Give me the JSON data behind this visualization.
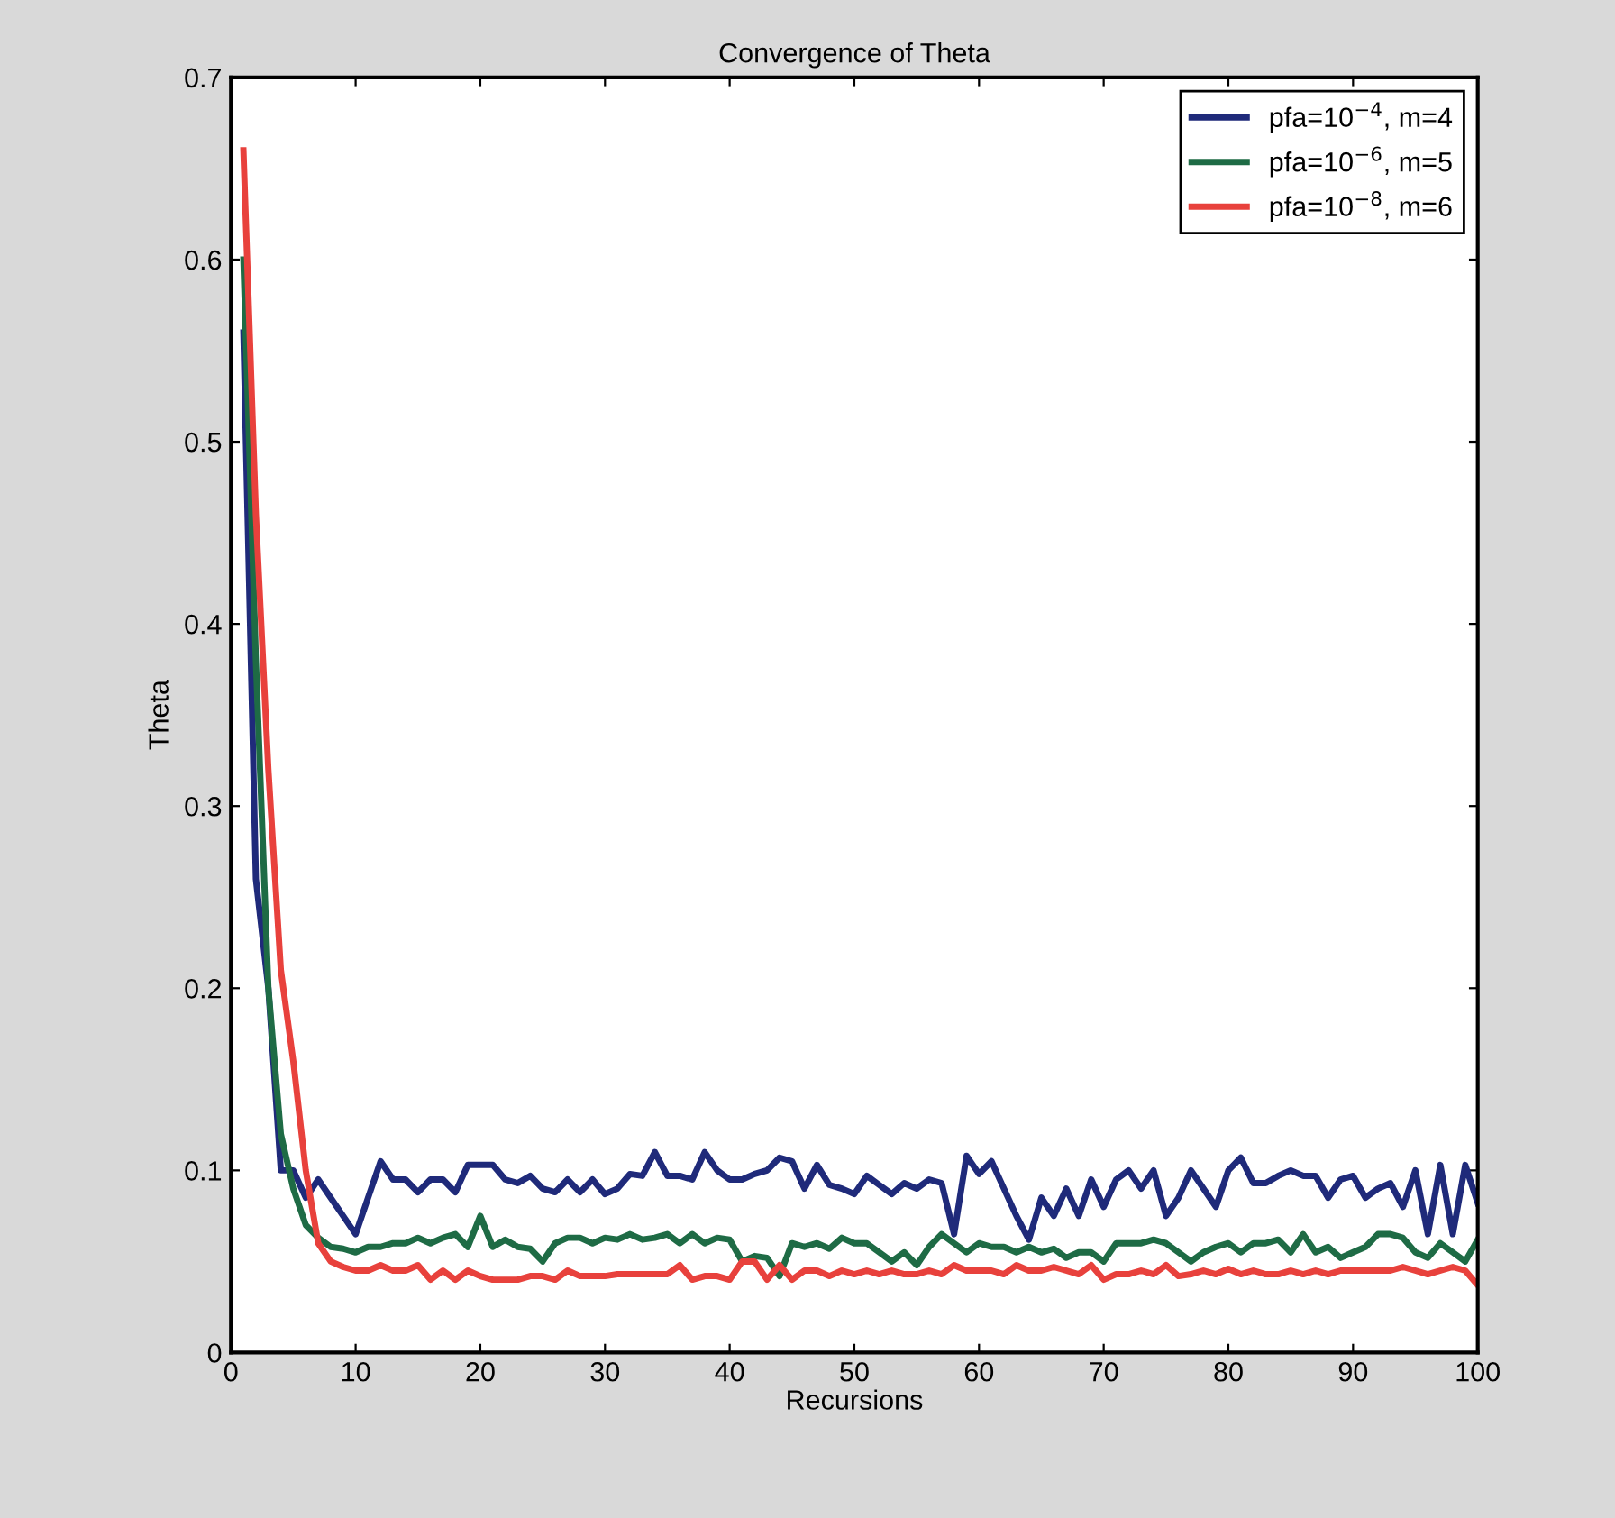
{
  "chart_data": {
    "type": "line",
    "title": "Convergence of Theta",
    "xlabel": "Recursions",
    "ylabel": "Theta",
    "x": [
      1,
      2,
      3,
      4,
      5,
      6,
      7,
      8,
      9,
      10,
      11,
      12,
      13,
      14,
      15,
      16,
      17,
      18,
      19,
      20,
      21,
      22,
      23,
      24,
      25,
      26,
      27,
      28,
      29,
      30,
      31,
      32,
      33,
      34,
      35,
      36,
      37,
      38,
      39,
      40,
      41,
      42,
      43,
      44,
      45,
      46,
      47,
      48,
      49,
      50,
      51,
      52,
      53,
      54,
      55,
      56,
      57,
      58,
      59,
      60,
      61,
      62,
      63,
      64,
      65,
      66,
      67,
      68,
      69,
      70,
      71,
      72,
      73,
      74,
      75,
      76,
      77,
      78,
      79,
      80,
      81,
      82,
      83,
      84,
      85,
      86,
      87,
      88,
      89,
      90,
      91,
      92,
      93,
      94,
      95,
      96,
      97,
      98,
      99,
      100
    ],
    "series": [
      {
        "name": "pfa=10$^{−4}$, m=4",
        "color": "#1f2a7a",
        "values": [
          0.56,
          0.26,
          0.2,
          0.1,
          0.1,
          0.085,
          0.095,
          0.085,
          0.075,
          0.065,
          0.085,
          0.105,
          0.095,
          0.095,
          0.088,
          0.095,
          0.095,
          0.088,
          0.103,
          0.103,
          0.103,
          0.095,
          0.093,
          0.097,
          0.09,
          0.088,
          0.095,
          0.088,
          0.095,
          0.087,
          0.09,
          0.098,
          0.097,
          0.11,
          0.097,
          0.097,
          0.095,
          0.11,
          0.1,
          0.095,
          0.095,
          0.098,
          0.1,
          0.107,
          0.105,
          0.09,
          0.103,
          0.092,
          0.09,
          0.087,
          0.097,
          0.092,
          0.087,
          0.093,
          0.09,
          0.095,
          0.093,
          0.065,
          0.108,
          0.098,
          0.105,
          0.09,
          0.075,
          0.062,
          0.085,
          0.075,
          0.09,
          0.075,
          0.095,
          0.08,
          0.095,
          0.1,
          0.09,
          0.1,
          0.075,
          0.085,
          0.1,
          0.09,
          0.08,
          0.1,
          0.107,
          0.093,
          0.093,
          0.097,
          0.1,
          0.097,
          0.097,
          0.085,
          0.095,
          0.097,
          0.085,
          0.09,
          0.093,
          0.08,
          0.1,
          0.065,
          0.103,
          0.065,
          0.103,
          0.082
        ]
      },
      {
        "name": "pfa=10$^{−6}$, m=5",
        "color": "#1e6b45",
        "values": [
          0.6,
          0.38,
          0.2,
          0.12,
          0.09,
          0.07,
          0.063,
          0.058,
          0.057,
          0.055,
          0.058,
          0.058,
          0.06,
          0.06,
          0.063,
          0.06,
          0.063,
          0.065,
          0.058,
          0.075,
          0.058,
          0.062,
          0.058,
          0.057,
          0.05,
          0.06,
          0.063,
          0.063,
          0.06,
          0.063,
          0.062,
          0.065,
          0.062,
          0.063,
          0.065,
          0.06,
          0.065,
          0.06,
          0.063,
          0.062,
          0.05,
          0.053,
          0.052,
          0.042,
          0.06,
          0.058,
          0.06,
          0.057,
          0.063,
          0.06,
          0.06,
          0.055,
          0.05,
          0.055,
          0.048,
          0.058,
          0.065,
          0.06,
          0.055,
          0.06,
          0.058,
          0.058,
          0.055,
          0.058,
          0.055,
          0.057,
          0.052,
          0.055,
          0.055,
          0.05,
          0.06,
          0.06,
          0.06,
          0.062,
          0.06,
          0.055,
          0.05,
          0.055,
          0.058,
          0.06,
          0.055,
          0.06,
          0.06,
          0.062,
          0.055,
          0.065,
          0.055,
          0.058,
          0.052,
          0.055,
          0.058,
          0.065,
          0.065,
          0.063,
          0.055,
          0.052,
          0.06,
          0.055,
          0.05,
          0.062
        ]
      },
      {
        "name": "pfa=10$^{−8}$, m=6",
        "color": "#e8413c",
        "values": [
          0.66,
          0.46,
          0.32,
          0.21,
          0.16,
          0.1,
          0.06,
          0.05,
          0.047,
          0.045,
          0.045,
          0.048,
          0.045,
          0.045,
          0.048,
          0.04,
          0.045,
          0.04,
          0.045,
          0.042,
          0.04,
          0.04,
          0.04,
          0.042,
          0.042,
          0.04,
          0.045,
          0.042,
          0.042,
          0.042,
          0.043,
          0.043,
          0.043,
          0.043,
          0.043,
          0.048,
          0.04,
          0.042,
          0.042,
          0.04,
          0.05,
          0.05,
          0.04,
          0.048,
          0.04,
          0.045,
          0.045,
          0.042,
          0.045,
          0.043,
          0.045,
          0.043,
          0.045,
          0.043,
          0.043,
          0.045,
          0.043,
          0.048,
          0.045,
          0.045,
          0.045,
          0.043,
          0.048,
          0.045,
          0.045,
          0.047,
          0.045,
          0.043,
          0.048,
          0.04,
          0.043,
          0.043,
          0.045,
          0.043,
          0.048,
          0.042,
          0.043,
          0.045,
          0.043,
          0.046,
          0.043,
          0.045,
          0.043,
          0.043,
          0.045,
          0.043,
          0.045,
          0.043,
          0.045,
          0.045,
          0.045,
          0.045,
          0.045,
          0.047,
          0.045,
          0.043,
          0.045,
          0.047,
          0.045,
          0.037
        ]
      }
    ],
    "xlim": [
      0,
      100
    ],
    "xticks": [
      0,
      10,
      20,
      30,
      40,
      50,
      60,
      70,
      80,
      90,
      100
    ],
    "ylim": [
      0,
      0.7
    ],
    "yticks": [
      0,
      0.1,
      0.2,
      0.3,
      0.4,
      0.5,
      0.6,
      0.7
    ],
    "grid": false,
    "legend": "top right",
    "line_style": "solid",
    "marker": "none"
  }
}
